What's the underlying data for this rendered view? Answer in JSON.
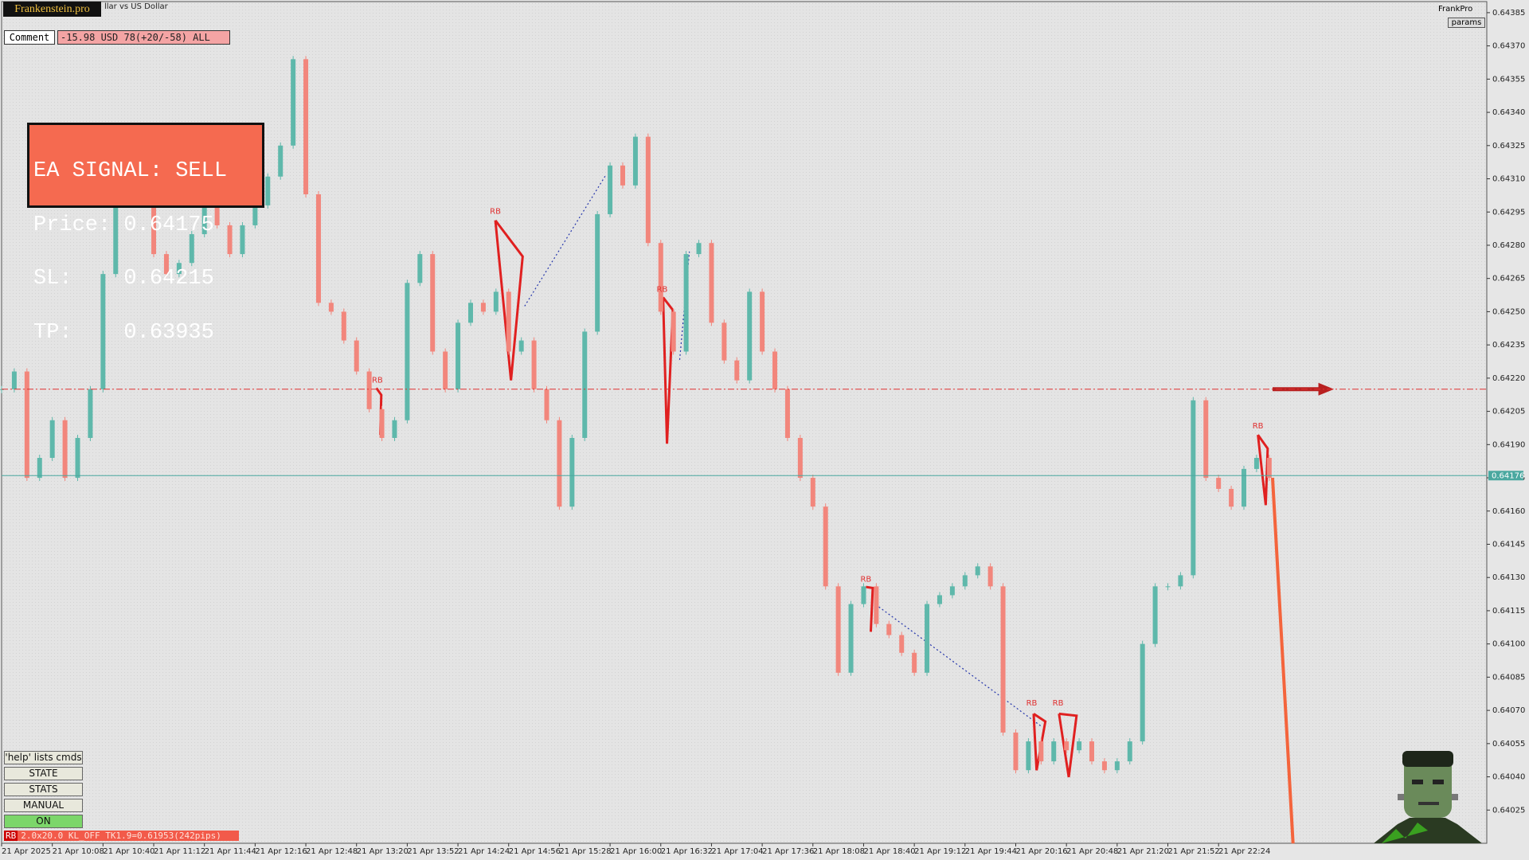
{
  "header": {
    "logo": "Frankenstein.pro",
    "symbol": "llar vs US Dollar",
    "brand": "FrankPro",
    "params": "params"
  },
  "comment": {
    "label": "Comment",
    "text": "-15.98 USD 78(+20/-58) ALL"
  },
  "signal": {
    "lines": [
      "EA SIGNAL: SELL",
      "Price: 0.64175",
      "SL:    0.64215",
      "TP:    0.63935"
    ]
  },
  "buttons": [
    "'help' lists cmds",
    "STATE",
    "STATS",
    "MANUAL",
    "ON"
  ],
  "status": {
    "tag": "RB",
    "text": "2.0x20.0 KL_OFF TK1.9=0.61953(242pips)"
  },
  "chart_data": {
    "type": "candlestick",
    "categories": [
      "21 Apr 2025",
      null,
      null,
      null,
      "21 Apr 10:08",
      null,
      null,
      null,
      "21 Apr 10:40",
      null,
      null,
      null,
      "21 Apr 11:12",
      null,
      null,
      null,
      "21 Apr 11:44",
      null,
      null,
      null,
      "21 Apr 12:16",
      null,
      null,
      null,
      "21 Apr 12:48",
      null,
      null,
      null,
      "21 Apr 13:20",
      null,
      null,
      null,
      "21 Apr 13:52",
      null,
      null,
      null,
      "21 Apr 14:24",
      null,
      null,
      null,
      "21 Apr 14:56",
      null,
      null,
      null,
      "21 Apr 15:28",
      null,
      null,
      null,
      "21 Apr 16:00",
      null,
      null,
      null,
      "21 Apr 16:32",
      null,
      null,
      null,
      "21 Apr 17:04",
      null,
      null,
      null,
      "21 Apr 17:36",
      null,
      null,
      null,
      "21 Apr 18:08",
      null,
      null,
      null,
      "21 Apr 18:40",
      null,
      null,
      null,
      "21 Apr 19:12",
      null,
      null,
      null,
      "21 Apr 19:44",
      null,
      null,
      null,
      "21 Apr 20:16",
      null,
      null,
      null,
      "21 Apr 20:48",
      null,
      null,
      null,
      "21 Apr 21:20",
      null,
      null,
      null,
      "21 Apr 21:52",
      null,
      null,
      null,
      "21 Apr 22:24",
      null,
      null,
      null,
      null
    ],
    "values": [
      0.64215,
      0.64223,
      0.64175,
      0.64184,
      0.64201,
      0.64175,
      0.64193,
      0.64215,
      0.64267,
      0.64303,
      0.64325,
      0.64303,
      0.64276,
      0.64267,
      0.64272,
      0.64285,
      0.64298,
      0.64289,
      0.64276,
      0.64289,
      0.64298,
      0.64311,
      0.64325,
      0.64364,
      0.64303,
      0.64254,
      0.6425,
      0.64237,
      0.64223,
      0.64206,
      0.64193,
      0.64201,
      0.64263,
      0.64276,
      0.64232,
      0.64215,
      0.64245,
      0.64254,
      0.6425,
      0.64259,
      0.64232,
      0.64237,
      0.64215,
      0.64201,
      0.64162,
      0.64193,
      0.64241,
      0.64294,
      0.64316,
      0.64307,
      0.64329,
      0.64281,
      0.6425,
      0.64232,
      0.64276,
      0.64281,
      0.64245,
      0.64228,
      0.64219,
      0.64259,
      0.64232,
      0.64215,
      0.64193,
      0.64175,
      0.64162,
      0.64126,
      0.64087,
      0.64118,
      0.64126,
      0.64109,
      0.64104,
      0.64096,
      0.64087,
      0.64118,
      0.64122,
      0.64126,
      0.64131,
      0.64135,
      0.64126,
      0.6406,
      0.64043,
      0.64056,
      0.64047,
      0.64056,
      0.64052,
      0.64056,
      0.64047,
      0.64043,
      0.64047,
      0.64056,
      0.641,
      0.64126,
      0.64126,
      0.64131,
      0.6421,
      0.64175,
      0.6417,
      0.64162,
      0.64179,
      0.64184,
      0.64175
    ],
    "up_color": "#5fb8ab",
    "down_color": "#f2867c",
    "ylim": [
      0.6401,
      0.6439
    ],
    "yticks": [
      0.64025,
      {
        "value": 0.6404,
        "label": "0.64040"
      },
      0.64055,
      {
        "value": 0.6407,
        "label": "0.64070"
      },
      0.64085,
      {
        "value": 0.641,
        "label": "0.64100"
      },
      0.64115,
      {
        "value": 0.6413,
        "label": "0.64130"
      },
      0.64145,
      {
        "value": 0.6416,
        "label": "0.64160"
      },
      0.64175,
      {
        "value": 0.6419,
        "label": "0.64190"
      },
      0.64205,
      {
        "value": 0.6422,
        "label": "0.64220"
      },
      0.64235,
      {
        "value": 0.6425,
        "label": "0.64250"
      },
      0.64265,
      {
        "value": 0.6428,
        "label": "0.64280"
      },
      0.64295,
      {
        "value": 0.6431,
        "label": "0.64310"
      },
      0.64325,
      {
        "value": 0.6434,
        "label": "0.64340"
      },
      0.64355,
      {
        "value": 0.6437,
        "label": "0.64370"
      },
      0.64385
    ],
    "current_price": 0.64176,
    "current_color": "#4aa8a0",
    "stop_line": 0.64215,
    "stop_color": "#e03030",
    "annotations": [
      "RB",
      "RB",
      "RB",
      "RB",
      "RB",
      "RB",
      "RB"
    ],
    "grid": false
  }
}
